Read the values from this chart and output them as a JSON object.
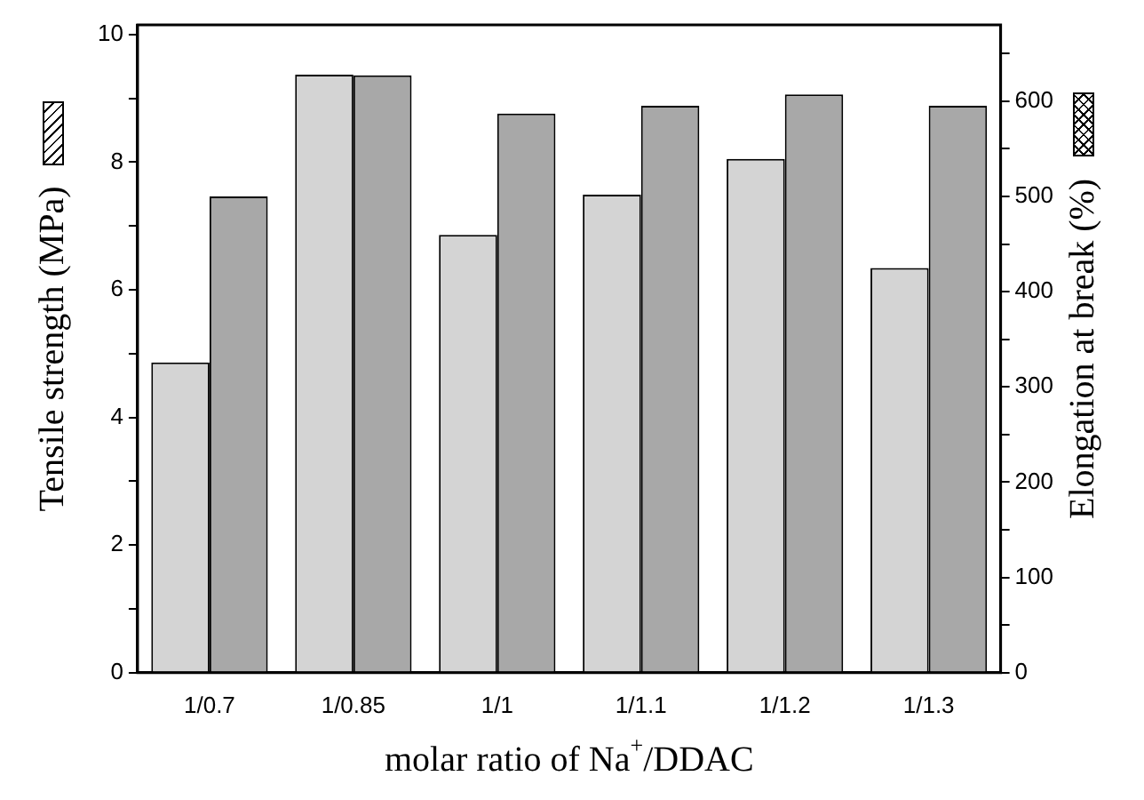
{
  "chart_data": {
    "type": "bar",
    "xlabel": "molar ratio of Na$^{+}$/DDAC",
    "ylabel": "Tensile strength (MPa)",
    "y2label": "Elongation at break (%)",
    "categories": [
      "1/0.7",
      "1/0.85",
      "1/1",
      "1/1.1",
      "1/1.2",
      "1/1.3"
    ],
    "series": [
      {
        "color": "#d4d4d4",
        "values": [
          4.86,
          9.37,
          6.86,
          7.49,
          8.05,
          6.34
        ]
      },
      {
        "color": "#a8a8a8",
        "axis": "y2",
        "values": [
          500,
          627,
          587,
          595,
          607,
          595
        ]
      }
    ],
    "ylim": [
      0,
      10.15
    ],
    "yticks": [
      0,
      {
        "value": 1,
        "label": null
      },
      2,
      {
        "value": 3,
        "label": null
      },
      4,
      {
        "value": 5,
        "label": null
      },
      6,
      {
        "value": 7,
        "label": null
      },
      8,
      {
        "value": 9,
        "label": null
      },
      10
    ],
    "y2lim": [
      0,
      680
    ],
    "y2ticks": [
      0,
      {
        "value": 50,
        "label": null
      },
      100,
      {
        "value": 150,
        "label": null
      },
      200,
      {
        "value": 250,
        "label": null
      },
      300,
      {
        "value": 350,
        "label": null
      },
      400,
      {
        "value": 450,
        "label": null
      },
      500,
      {
        "value": 550,
        "label": null
      },
      600,
      {
        "value": 650,
        "label": null
      }
    ],
    "grid": false,
    "legend": false
  }
}
